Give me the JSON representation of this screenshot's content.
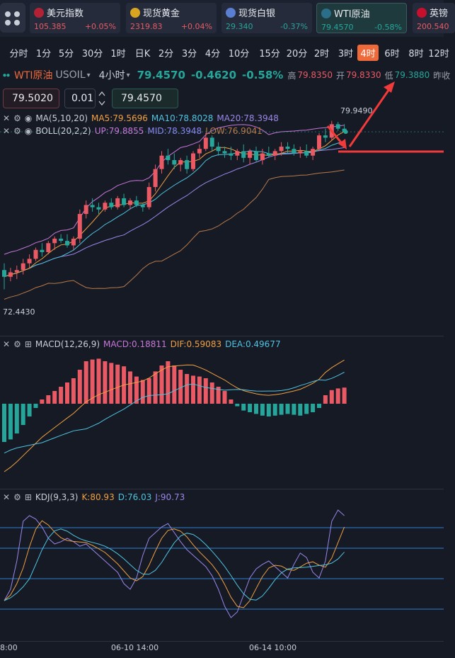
{
  "tickers": [
    {
      "name": "美元指数",
      "price": "105.385",
      "change": "+0.05%",
      "dir": "up",
      "icon": "us-flag-icon",
      "color": "#b22234"
    },
    {
      "name": "现货黄金",
      "price": "2319.83",
      "change": "+0.04%",
      "dir": "up",
      "icon": "gold-coin-icon",
      "color": "#d9a520"
    },
    {
      "name": "现货白银",
      "price": "29.340",
      "change": "-0.37%",
      "dir": "down",
      "icon": "silver-coin-icon",
      "color": "#5a7fd0"
    },
    {
      "name": "WTI原油",
      "price": "79.4570",
      "change": "-0.58%",
      "dir": "down",
      "icon": "oil-drum-icon",
      "color": "#2b6e8a",
      "active": true
    },
    {
      "name": "英镑",
      "price": "200.540",
      "change": "",
      "dir": "up",
      "icon": "uk-flag-icon",
      "color": "#c8102e"
    }
  ],
  "timeframes": [
    "分时",
    "1分",
    "5分",
    "30分",
    "1时",
    "日K",
    "2分",
    "3分",
    "4分",
    "10分",
    "15分",
    "20分",
    "2时",
    "3时",
    "4时",
    "6时",
    "8时",
    "12时"
  ],
  "active_timeframe": "4时",
  "symbol": {
    "name": "WTI原油",
    "code": "USOIL",
    "period": "4小时",
    "last": "79.4570",
    "change": "-0.4620",
    "change_pct": "-0.58%",
    "high_label": "高",
    "high": "79.8350",
    "open_label": "开",
    "open": "79.8330",
    "low_label": "低",
    "low": "79.3880",
    "prev_label": "昨收"
  },
  "order": {
    "bid": "79.5020",
    "step": "0.01",
    "ask": "79.4570"
  },
  "ma_legend": {
    "name": "MA(5,10,20)",
    "ma5": "MA5:79.5696",
    "ma10": "MA10:78.8028",
    "ma20": "MA20:78.3948"
  },
  "boll_legend": {
    "name": "BOLL(20,2,2)",
    "up": "UP:79.8855",
    "mid": "MID:78.3948",
    "low": "LOW:76.9041"
  },
  "macd_legend": {
    "name": "MACD(12,26,9)",
    "macd": "MACD:0.18811",
    "dif": "DIF:0.59083",
    "dea": "DEA:0.49677"
  },
  "kdj_legend": {
    "name": "KDJ(9,3,3)",
    "k": "K:80.93",
    "d": "D:76.03",
    "j": "J:90.73"
  },
  "price_labels": {
    "high_marker": "79.9490",
    "low_marker": "72.4430"
  },
  "time_labels": [
    "8:00",
    "06-10 14:00",
    "06-14 10:00"
  ],
  "colors": {
    "up": "#e95a64",
    "down": "#26a69a",
    "ma5": "#f0a040",
    "ma10": "#4fc3e0",
    "ma20": "#9a86e8",
    "boll_low": "#b87a4a",
    "accent": "#ef6a3b",
    "arrow": "#f23a3a"
  },
  "chart_data": {
    "type": "candlestick",
    "candles": [
      [
        73.3,
        73.6,
        72.44,
        73.0
      ],
      [
        73.0,
        73.4,
        72.8,
        73.2
      ],
      [
        73.2,
        73.5,
        72.9,
        73.3
      ],
      [
        73.3,
        73.8,
        73.1,
        73.6
      ],
      [
        73.6,
        74.0,
        73.4,
        73.8
      ],
      [
        73.8,
        74.3,
        73.7,
        74.2
      ],
      [
        74.2,
        74.5,
        73.9,
        74.1
      ],
      [
        74.1,
        74.6,
        74.0,
        74.5
      ],
      [
        74.5,
        74.8,
        74.2,
        74.7
      ],
      [
        74.7,
        74.9,
        74.5,
        74.6
      ],
      [
        74.6,
        74.9,
        74.3,
        74.4
      ],
      [
        74.4,
        74.8,
        74.2,
        74.7
      ],
      [
        74.7,
        76.0,
        74.5,
        75.8
      ],
      [
        75.8,
        76.4,
        75.6,
        76.2
      ],
      [
        76.2,
        76.5,
        75.9,
        76.1
      ],
      [
        76.1,
        76.3,
        75.8,
        76.0
      ],
      [
        76.0,
        76.4,
        75.9,
        76.3
      ],
      [
        76.3,
        76.5,
        76.0,
        76.1
      ],
      [
        76.1,
        76.6,
        76.0,
        76.5
      ],
      [
        76.5,
        76.7,
        76.1,
        76.2
      ],
      [
        76.2,
        76.5,
        76.0,
        76.4
      ],
      [
        76.4,
        76.6,
        76.1,
        76.2
      ],
      [
        76.2,
        76.3,
        75.9,
        76.1
      ],
      [
        76.1,
        77.2,
        76.0,
        77.0
      ],
      [
        77.0,
        78.0,
        76.8,
        77.8
      ],
      [
        77.8,
        78.6,
        77.6,
        78.4
      ],
      [
        78.4,
        78.7,
        78.0,
        78.2
      ],
      [
        78.2,
        78.5,
        77.8,
        78.0
      ],
      [
        78.0,
        78.3,
        77.7,
        78.2
      ],
      [
        78.2,
        78.4,
        77.6,
        77.8
      ],
      [
        77.8,
        78.6,
        77.7,
        78.5
      ],
      [
        78.5,
        78.9,
        78.3,
        78.7
      ],
      [
        78.7,
        79.4,
        78.6,
        79.2
      ],
      [
        79.2,
        79.3,
        78.6,
        78.8
      ],
      [
        78.8,
        79.0,
        78.4,
        78.6
      ],
      [
        78.6,
        78.8,
        78.3,
        78.5
      ],
      [
        78.5,
        78.8,
        78.2,
        78.4
      ],
      [
        78.4,
        78.7,
        78.2,
        78.6
      ],
      [
        78.6,
        78.9,
        78.1,
        78.3
      ],
      [
        78.3,
        78.7,
        78.0,
        78.6
      ],
      [
        78.6,
        78.8,
        78.1,
        78.2
      ],
      [
        78.2,
        78.7,
        78.0,
        78.5
      ],
      [
        78.5,
        78.8,
        78.3,
        78.4
      ],
      [
        78.4,
        78.7,
        78.2,
        78.6
      ],
      [
        78.6,
        79.0,
        78.4,
        78.8
      ],
      [
        78.8,
        79.0,
        78.5,
        78.7
      ],
      [
        78.7,
        78.9,
        78.4,
        78.5
      ],
      [
        78.5,
        78.8,
        78.3,
        78.6
      ],
      [
        78.6,
        78.9,
        78.3,
        78.4
      ],
      [
        78.4,
        78.8,
        78.2,
        78.7
      ],
      [
        78.7,
        79.4,
        78.6,
        79.3
      ],
      [
        79.3,
        79.6,
        79.0,
        79.2
      ],
      [
        79.2,
        79.95,
        79.1,
        79.8
      ],
      [
        79.8,
        79.9,
        79.5,
        79.6
      ],
      [
        79.6,
        79.8,
        79.39,
        79.46
      ]
    ],
    "macd_hist": [
      -0.45,
      -0.42,
      -0.35,
      -0.25,
      -0.15,
      -0.05,
      0.05,
      0.1,
      0.15,
      0.2,
      0.25,
      0.3,
      0.4,
      0.5,
      0.52,
      0.53,
      0.5,
      0.48,
      0.46,
      0.44,
      0.38,
      0.32,
      0.28,
      0.3,
      0.38,
      0.45,
      0.5,
      0.45,
      0.4,
      0.35,
      0.33,
      0.32,
      0.3,
      0.25,
      0.2,
      0.15,
      0.05,
      -0.03,
      -0.08,
      -0.1,
      -0.12,
      -0.14,
      -0.15,
      -0.14,
      -0.13,
      -0.12,
      -0.13,
      -0.14,
      -0.12,
      -0.1,
      -0.05,
      0.1,
      0.16,
      0.18,
      0.19
    ]
  }
}
